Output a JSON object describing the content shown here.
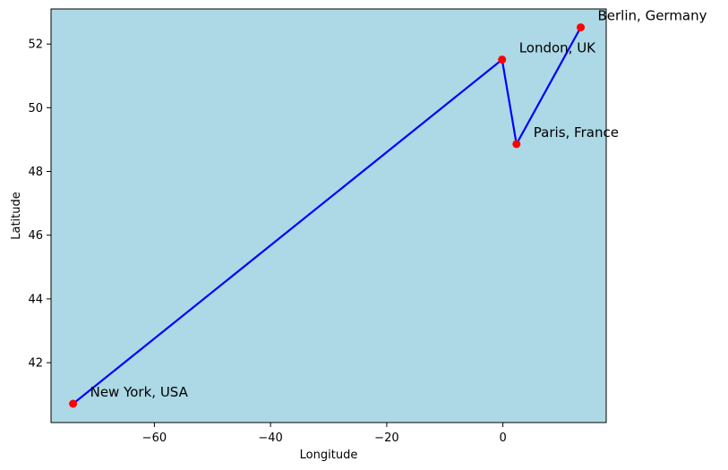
{
  "chart_data": {
    "type": "line",
    "title": "",
    "xlabel": "Longitude",
    "ylabel": "Latitude",
    "xlim": [
      -77.8,
      17.8
    ],
    "ylim": [
      40.12,
      53.1
    ],
    "xticks": [
      -60,
      -40,
      -20,
      0
    ],
    "yticks": [
      42,
      44,
      46,
      48,
      50,
      52
    ],
    "xtick_labels": [
      "−60",
      "−40",
      "−20",
      "0"
    ],
    "ytick_labels": [
      "42",
      "44",
      "46",
      "48",
      "50",
      "52"
    ],
    "background_color": "#add8e6",
    "line_color": "#0000ff",
    "marker_color": "#ff0000",
    "grid": false,
    "legend": false,
    "points": [
      {
        "label": "New York, USA",
        "x": -74.0,
        "y": 40.71
      },
      {
        "label": "London, UK",
        "x": -0.13,
        "y": 51.51
      },
      {
        "label": "Paris, France",
        "x": 2.35,
        "y": 48.86
      },
      {
        "label": "Berlin, Germany",
        "x": 13.4,
        "y": 52.52
      }
    ]
  }
}
